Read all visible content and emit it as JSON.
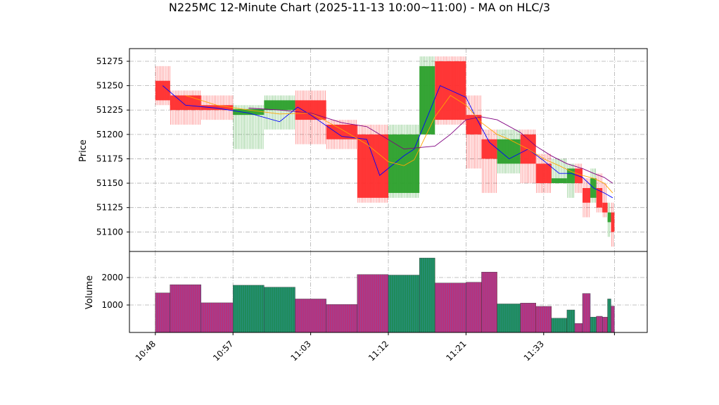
{
  "chart_data": {
    "type": "candlestick",
    "title": "N225MC 12-Minute Chart (2025-11-13 10:00~11:00) - MA on HLC/3",
    "price_panel": {
      "ylabel": "Price",
      "ylim": [
        51080,
        51288
      ],
      "yticks": [
        51100,
        51125,
        51150,
        51175,
        51200,
        51225,
        51250,
        51275
      ],
      "grid": true
    },
    "volume_panel": {
      "ylabel": "Volume",
      "ylim": [
        0,
        2950
      ],
      "yticks": [
        1000,
        2000
      ],
      "grid": true
    },
    "x_axis": {
      "tick_labels": [
        "10:48",
        "10:57",
        "11:03",
        "11:12",
        "11:21",
        "11:33"
      ],
      "tick_x": [
        0,
        9,
        18,
        27,
        36,
        45
      ],
      "xlim": [
        -3,
        57
      ]
    },
    "up_color": "#2ca02c",
    "down_color": "#ff2d2d",
    "ma_series": [
      {
        "color": "#0000ff"
      },
      {
        "color": "#ffa500"
      },
      {
        "color": "#800080"
      }
    ],
    "candles": [
      {
        "x0": 0.0,
        "x1": 1.7,
        "open": 51255,
        "close": 51235,
        "high": 51270,
        "low": 51230,
        "volume": 1440,
        "up": false
      },
      {
        "x0": 1.7,
        "x1": 5.3,
        "open": 51240,
        "close": 51225,
        "high": 51245,
        "low": 51210,
        "volume": 1740,
        "up": false
      },
      {
        "x0": 5.3,
        "x1": 9.0,
        "open": 51230,
        "close": 51225,
        "high": 51240,
        "low": 51215,
        "volume": 1080,
        "up": false
      },
      {
        "x0": 9.0,
        "x1": 12.6,
        "open": 51220,
        "close": 51226,
        "high": 51230,
        "low": 51185,
        "volume": 1720,
        "up": true
      },
      {
        "x0": 12.6,
        "x1": 16.2,
        "open": 51225,
        "close": 51235,
        "high": 51240,
        "low": 51205,
        "volume": 1650,
        "up": true
      },
      {
        "x0": 16.2,
        "x1": 19.8,
        "open": 51235,
        "close": 51215,
        "high": 51245,
        "low": 51190,
        "volume": 1220,
        "up": false
      },
      {
        "x0": 19.8,
        "x1": 23.4,
        "open": 51210,
        "close": 51195,
        "high": 51215,
        "low": 51185,
        "volume": 1020,
        "up": false
      },
      {
        "x0": 23.4,
        "x1": 27.0,
        "open": 51200,
        "close": 51135,
        "high": 51210,
        "low": 51130,
        "volume": 2110,
        "up": false
      },
      {
        "x0": 27.0,
        "x1": 30.6,
        "open": 51140,
        "close": 51200,
        "high": 51210,
        "low": 51135,
        "volume": 2090,
        "up": true
      },
      {
        "x0": 30.6,
        "x1": 32.4,
        "open": 51200,
        "close": 51270,
        "high": 51280,
        "low": 51200,
        "volume": 2710,
        "up": true
      },
      {
        "x0": 32.4,
        "x1": 36.0,
        "open": 51275,
        "close": 51215,
        "high": 51280,
        "low": 51210,
        "volume": 1800,
        "up": false
      },
      {
        "x0": 36.0,
        "x1": 37.8,
        "open": 51220,
        "close": 51200,
        "high": 51240,
        "low": 51165,
        "volume": 1830,
        "up": false
      },
      {
        "x0": 37.8,
        "x1": 39.6,
        "open": 51195,
        "close": 51175,
        "high": 51205,
        "low": 51140,
        "volume": 2200,
        "up": false
      },
      {
        "x0": 39.6,
        "x1": 42.3,
        "open": 51170,
        "close": 51195,
        "high": 51205,
        "low": 51160,
        "volume": 1040,
        "up": true
      },
      {
        "x0": 42.3,
        "x1": 44.1,
        "open": 51200,
        "close": 51170,
        "high": 51205,
        "low": 51150,
        "volume": 1070,
        "up": false
      },
      {
        "x0": 44.1,
        "x1": 45.9,
        "open": 51170,
        "close": 51150,
        "high": 51180,
        "low": 51140,
        "volume": 950,
        "up": false
      },
      {
        "x0": 45.9,
        "x1": 47.7,
        "open": 51150,
        "close": 51155,
        "high": 51175,
        "low": 51150,
        "volume": 520,
        "up": true
      },
      {
        "x0": 47.7,
        "x1": 48.6,
        "open": 51150,
        "close": 51165,
        "high": 51170,
        "low": 51135,
        "volume": 820,
        "up": true
      },
      {
        "x0": 48.6,
        "x1": 49.5,
        "open": 51165,
        "close": 51150,
        "high": 51170,
        "low": 51140,
        "volume": 330,
        "up": false
      },
      {
        "x0": 49.5,
        "x1": 50.4,
        "open": 51145,
        "close": 51130,
        "high": 51155,
        "low": 51115,
        "volume": 1420,
        "up": false
      },
      {
        "x0": 50.4,
        "x1": 51.1,
        "open": 51135,
        "close": 51155,
        "high": 51165,
        "low": 51130,
        "volume": 560,
        "up": true
      },
      {
        "x0": 51.1,
        "x1": 51.8,
        "open": 51145,
        "close": 51125,
        "high": 51160,
        "low": 51120,
        "volume": 590,
        "up": false
      },
      {
        "x0": 51.8,
        "x1": 52.4,
        "open": 51130,
        "close": 51120,
        "high": 51150,
        "low": 51115,
        "volume": 560,
        "up": false
      },
      {
        "x0": 52.4,
        "x1": 52.8,
        "open": 51110,
        "close": 51120,
        "high": 51130,
        "low": 51095,
        "volume": 1220,
        "up": true
      },
      {
        "x0": 52.8,
        "x1": 53.2,
        "open": 51120,
        "close": 51100,
        "high": 51130,
        "low": 51085,
        "volume": 960,
        "up": false
      }
    ],
    "ma_values": [
      [
        [
          0.85,
          51250
        ],
        [
          3.5,
          51230
        ],
        [
          7.1,
          51227
        ],
        [
          10.8,
          51222
        ],
        [
          14.4,
          51213
        ],
        [
          16.5,
          51228
        ],
        [
          18.0,
          51220
        ],
        [
          21.6,
          51198
        ],
        [
          24.5,
          51195
        ],
        [
          26.0,
          51158
        ],
        [
          28.8,
          51178
        ],
        [
          30.0,
          51185
        ],
        [
          33.0,
          51250
        ],
        [
          36.0,
          51238
        ],
        [
          37.0,
          51220
        ],
        [
          38.7,
          51192
        ],
        [
          41.0,
          51175
        ],
        [
          43.2,
          51185
        ],
        [
          45.0,
          51173
        ],
        [
          46.8,
          51160
        ],
        [
          48.2,
          51160
        ],
        [
          49.5,
          51156
        ],
        [
          50.8,
          51145
        ],
        [
          52.0,
          51140
        ],
        [
          53.0,
          51135
        ]
      ],
      [
        [
          3.5,
          51240
        ],
        [
          7.1,
          51230
        ],
        [
          10.8,
          51225
        ],
        [
          14.4,
          51221
        ],
        [
          18.0,
          51222
        ],
        [
          21.6,
          51205
        ],
        [
          24.5,
          51190
        ],
        [
          27.0,
          51172
        ],
        [
          28.8,
          51168
        ],
        [
          30.0,
          51174
        ],
        [
          32.4,
          51218
        ],
        [
          34.2,
          51240
        ],
        [
          36.0,
          51230
        ],
        [
          37.8,
          51212
        ],
        [
          39.6,
          51200
        ],
        [
          41.0,
          51195
        ],
        [
          43.2,
          51185
        ],
        [
          45.0,
          51175
        ],
        [
          46.8,
          51168
        ],
        [
          48.2,
          51162
        ],
        [
          49.5,
          51158
        ],
        [
          50.8,
          51155
        ],
        [
          52.0,
          51150
        ],
        [
          53.0,
          51140
        ]
      ],
      [
        [
          10.8,
          51227
        ],
        [
          14.4,
          51225
        ],
        [
          18.0,
          51222
        ],
        [
          21.6,
          51212
        ],
        [
          24.5,
          51208
        ],
        [
          26.0,
          51200
        ],
        [
          28.8,
          51185
        ],
        [
          32.4,
          51188
        ],
        [
          34.2,
          51200
        ],
        [
          36.0,
          51215
        ],
        [
          37.8,
          51218
        ],
        [
          39.6,
          51215
        ],
        [
          42.3,
          51202
        ],
        [
          44.1,
          51188
        ],
        [
          45.9,
          51178
        ],
        [
          47.7,
          51170
        ],
        [
          49.5,
          51165
        ],
        [
          50.8,
          51160
        ],
        [
          52.0,
          51156
        ],
        [
          53.0,
          51150
        ]
      ]
    ]
  }
}
